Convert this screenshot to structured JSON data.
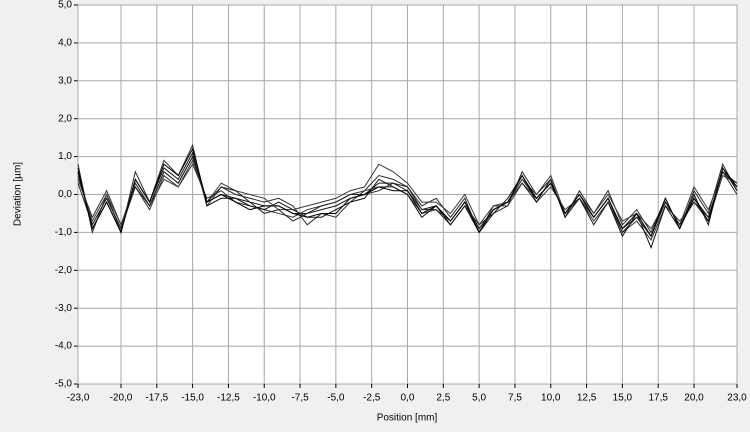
{
  "chart_data": {
    "type": "line",
    "xlabel": "Position [mm]",
    "ylabel": "Deviation [µm]",
    "x": [
      -23,
      -22,
      -21,
      -20,
      -19,
      -18,
      -17,
      -16,
      -15,
      -14,
      -13,
      -12,
      -11,
      -10,
      -9,
      -8,
      -7,
      -6,
      -5,
      -4,
      -3,
      -2,
      -1,
      0,
      1,
      2,
      3,
      4,
      5,
      6,
      7,
      8,
      9,
      10,
      11,
      12,
      13,
      14,
      15,
      16,
      17,
      18,
      19,
      20,
      21,
      22,
      23
    ],
    "series": [
      {
        "color": "#1a1a1a",
        "values": [
          0.6,
          -0.8,
          -0.1,
          -0.9,
          0.3,
          -0.3,
          0.6,
          0.3,
          1.0,
          -0.2,
          0.0,
          -0.1,
          -0.2,
          -0.3,
          -0.3,
          -0.5,
          -0.5,
          -0.4,
          -0.3,
          -0.1,
          0.0,
          0.3,
          0.3,
          0.1,
          -0.4,
          -0.3,
          -0.7,
          -0.2,
          -0.9,
          -0.4,
          -0.2,
          0.4,
          -0.1,
          0.3,
          -0.5,
          0.0,
          -0.6,
          -0.1,
          -0.9,
          -0.6,
          -1.1,
          -0.2,
          -0.8,
          -0.1,
          -0.6,
          0.6,
          0.2
        ]
      },
      {
        "color": "#2a2a2a",
        "values": [
          0.8,
          -1.0,
          0.0,
          -1.0,
          0.6,
          -0.2,
          0.9,
          0.5,
          1.3,
          -0.3,
          0.2,
          0.0,
          -0.1,
          -0.2,
          -0.1,
          -0.3,
          -0.8,
          -0.5,
          -0.6,
          -0.2,
          0.1,
          0.5,
          0.4,
          0.2,
          -0.3,
          -0.1,
          -0.6,
          -0.1,
          -1.0,
          -0.3,
          -0.3,
          0.6,
          0.0,
          0.4,
          -0.6,
          0.1,
          -0.5,
          0.1,
          -0.8,
          -0.4,
          -1.0,
          -0.1,
          -0.9,
          0.1,
          -0.5,
          0.8,
          0.1
        ]
      },
      {
        "color": "#333333",
        "values": [
          0.4,
          -0.6,
          0.1,
          -0.8,
          0.2,
          -0.4,
          0.5,
          0.2,
          0.8,
          -0.1,
          0.1,
          -0.2,
          -0.3,
          -0.4,
          -0.5,
          -0.6,
          -0.4,
          -0.3,
          -0.2,
          0.0,
          0.1,
          0.2,
          0.2,
          0.0,
          -0.5,
          -0.4,
          -0.8,
          -0.3,
          -0.8,
          -0.5,
          -0.3,
          0.3,
          -0.2,
          0.2,
          -0.4,
          -0.1,
          -0.7,
          -0.2,
          -1.0,
          -0.7,
          -1.2,
          -0.3,
          -0.7,
          -0.2,
          -0.7,
          0.5,
          0.3
        ]
      },
      {
        "color": "#111111",
        "values": [
          0.7,
          -0.9,
          -0.2,
          -1.0,
          0.4,
          -0.2,
          0.7,
          0.4,
          1.1,
          -0.3,
          -0.1,
          -0.1,
          -0.3,
          -0.4,
          -0.2,
          -0.4,
          -0.6,
          -0.6,
          -0.4,
          -0.2,
          -0.1,
          0.4,
          0.2,
          0.0,
          -0.6,
          -0.3,
          -0.8,
          -0.3,
          -1.0,
          -0.5,
          -0.1,
          0.5,
          -0.2,
          0.4,
          -0.6,
          -0.1,
          -0.8,
          -0.2,
          -1.1,
          -0.5,
          -1.4,
          -0.3,
          -0.9,
          0.0,
          -0.8,
          0.7,
          0.1
        ]
      },
      {
        "color": "#3a3a3a",
        "values": [
          0.5,
          -0.7,
          0.0,
          -0.8,
          0.3,
          -0.3,
          0.4,
          0.2,
          0.9,
          -0.2,
          0.3,
          0.1,
          0.0,
          -0.1,
          -0.4,
          -0.4,
          -0.3,
          -0.2,
          -0.1,
          0.1,
          0.2,
          0.8,
          0.6,
          0.3,
          -0.2,
          -0.2,
          -0.5,
          0.0,
          -0.8,
          -0.3,
          -0.2,
          0.4,
          0.0,
          0.5,
          -0.5,
          0.0,
          -0.5,
          0.0,
          -0.7,
          -0.5,
          -0.9,
          -0.2,
          -0.8,
          0.2,
          -0.4,
          0.6,
          0.3
        ]
      },
      {
        "color": "#222222",
        "values": [
          0.3,
          -0.8,
          -0.1,
          -0.9,
          0.2,
          -0.3,
          0.6,
          0.3,
          1.0,
          -0.2,
          0.2,
          0.1,
          -0.2,
          -0.5,
          -0.4,
          -0.7,
          -0.5,
          -0.3,
          -0.2,
          0.0,
          0.0,
          0.1,
          0.3,
          0.2,
          -0.4,
          -0.4,
          -0.7,
          -0.2,
          -0.9,
          -0.4,
          -0.2,
          0.3,
          -0.1,
          0.3,
          -0.5,
          -0.1,
          -0.6,
          -0.1,
          -1.0,
          -0.6,
          -1.1,
          -0.2,
          -0.8,
          -0.2,
          -0.6,
          0.6,
          0.0
        ]
      },
      {
        "color": "#000000",
        "values": [
          0.6,
          -0.9,
          -0.2,
          -1.0,
          0.4,
          -0.2,
          0.8,
          0.5,
          1.2,
          -0.2,
          0.0,
          -0.2,
          -0.4,
          -0.3,
          -0.3,
          -0.5,
          -0.6,
          -0.5,
          -0.5,
          -0.1,
          0.0,
          0.2,
          0.1,
          0.1,
          -0.5,
          -0.3,
          -0.7,
          -0.2,
          -1.0,
          -0.4,
          -0.2,
          0.5,
          -0.1,
          0.3,
          -0.5,
          0.0,
          -0.6,
          -0.1,
          -0.9,
          -0.5,
          -1.1,
          -0.1,
          -0.9,
          -0.1,
          -0.7,
          0.7,
          0.2
        ]
      }
    ],
    "xlim": [
      -23,
      23
    ],
    "ylim": [
      -5,
      5
    ],
    "xticks": [
      {
        "value": -23,
        "label": "-23,0"
      },
      {
        "value": -20,
        "label": "-20,0"
      },
      {
        "value": -17.5,
        "label": "-17,5"
      },
      {
        "value": -15,
        "label": "-15,0"
      },
      {
        "value": -12.5,
        "label": "-12,5"
      },
      {
        "value": -10,
        "label": "-10,0"
      },
      {
        "value": -7.5,
        "label": "-7,5"
      },
      {
        "value": -5,
        "label": "-5,0"
      },
      {
        "value": -2.5,
        "label": "-2,5"
      },
      {
        "value": 0,
        "label": "0,0"
      },
      {
        "value": 2.5,
        "label": "2,5"
      },
      {
        "value": 5,
        "label": "5,0"
      },
      {
        "value": 7.5,
        "label": "7,5"
      },
      {
        "value": 10,
        "label": "10,0"
      },
      {
        "value": 12.5,
        "label": "12,5"
      },
      {
        "value": 15,
        "label": "15,0"
      },
      {
        "value": 17.5,
        "label": "17,5"
      },
      {
        "value": 20,
        "label": "20,0"
      },
      {
        "value": 23,
        "label": "23,0"
      }
    ],
    "yticks": [
      {
        "value": -5,
        "label": "-5,0"
      },
      {
        "value": -4,
        "label": "-4,0"
      },
      {
        "value": -3,
        "label": "-3,0"
      },
      {
        "value": -2,
        "label": "-2,0"
      },
      {
        "value": -1,
        "label": "-1,0"
      },
      {
        "value": 0,
        "label": "0,0"
      },
      {
        "value": 1,
        "label": "1,0"
      },
      {
        "value": 2,
        "label": "2,0"
      },
      {
        "value": 3,
        "label": "3,0"
      },
      {
        "value": 4,
        "label": "4,0"
      },
      {
        "value": 5,
        "label": "5,0"
      }
    ],
    "grid": true
  }
}
